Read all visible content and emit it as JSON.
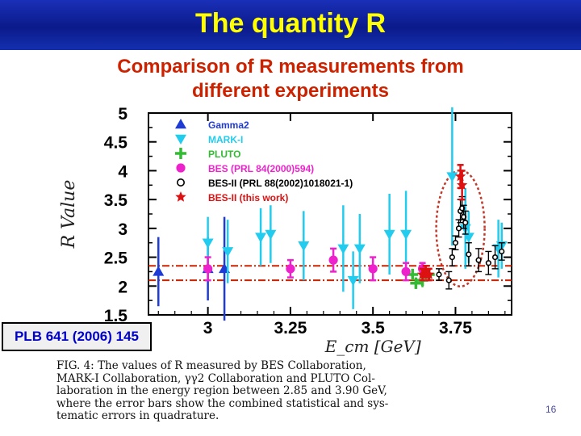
{
  "slide": {
    "title": "The quantity R",
    "subtitle_line1": "Comparison of R measurements from",
    "subtitle_line2": "different experiments",
    "reference_box": "PLB 641 (2006) 145",
    "page_number": "16",
    "caption_lines": [
      "FIG. 4: The values of R measured by BES Collaboration,",
      "MARK-I Collaboration, γγ2 Collaboration and PLUTO Col-",
      "laboration in the energy region between 2.85 and 3.90 GeV,",
      "where the error bars show the combined statistical and sys-",
      "tematic errors in quadrature."
    ]
  },
  "colors": {
    "title_text": "#ffff00",
    "subtitle_text": "#cc2200",
    "reference_text": "#0000cc",
    "band": "#cc2200"
  },
  "chart_data": {
    "type": "scatter",
    "title": "",
    "xlabel": "E_cm [GeV]",
    "ylabel": "R Value",
    "xlim": [
      2.82,
      3.92
    ],
    "ylim": [
      1.5,
      5.0
    ],
    "xticks": [
      3.0,
      3.25,
      3.5,
      3.75
    ],
    "xtick_labels": [
      "3",
      "3.25",
      "3.5",
      "3.75"
    ],
    "yticks": [
      1.5,
      2,
      2.5,
      3,
      3.5,
      4,
      4.5,
      5
    ],
    "ytick_labels": [
      "1.5",
      "2",
      "2.5",
      "3",
      "3.5",
      "4",
      "4.5",
      "5"
    ],
    "band": {
      "low": 2.1,
      "high": 2.35
    },
    "legend_position": "top-left",
    "series": [
      {
        "name": "Gamma2",
        "marker": "triangle-up",
        "color": "#1f3bd6",
        "points": [
          [
            2.85,
            2.25,
            0.6
          ],
          [
            3.0,
            2.3,
            0.55
          ],
          [
            3.05,
            2.3,
            0.9
          ]
        ]
      },
      {
        "name": "MARK-I",
        "marker": "triangle-down",
        "color": "#22ccee",
        "points": [
          [
            3.0,
            2.75,
            0.45
          ],
          [
            3.06,
            2.6,
            0.55
          ],
          [
            3.16,
            2.85,
            0.5
          ],
          [
            3.19,
            2.9,
            0.5
          ],
          [
            3.29,
            2.7,
            0.6
          ],
          [
            3.41,
            2.65,
            0.75
          ],
          [
            3.46,
            2.65,
            0.6
          ],
          [
            3.55,
            2.9,
            0.7
          ],
          [
            3.6,
            2.9,
            0.75
          ],
          [
            3.44,
            2.1,
            0.5
          ],
          [
            3.74,
            3.9,
            1.2
          ],
          [
            3.78,
            3.0,
            0.7
          ],
          [
            3.79,
            2.85,
            0.45
          ],
          [
            3.88,
            2.65,
            0.5
          ],
          [
            3.89,
            2.7,
            0.4
          ]
        ]
      },
      {
        "name": "PLUTO",
        "marker": "cross",
        "color": "#33bb33",
        "points": [
          [
            3.62,
            2.2,
            0.1
          ],
          [
            3.63,
            2.05,
            0.1
          ],
          [
            3.65,
            2.1,
            0.12
          ],
          [
            3.67,
            2.2,
            0.1
          ]
        ]
      },
      {
        "name": "BES (PRL 84(2000)594)",
        "marker": "circle-filled",
        "color": "#ee22cc",
        "points": [
          [
            3.0,
            2.3,
            0.2
          ],
          [
            3.25,
            2.3,
            0.15
          ],
          [
            3.38,
            2.45,
            0.2
          ],
          [
            3.5,
            2.3,
            0.2
          ],
          [
            3.6,
            2.25,
            0.15
          ],
          [
            3.65,
            2.3,
            0.1
          ]
        ]
      },
      {
        "name": "BES-II (PRL 88(2002)1018021-1)",
        "marker": "circle-open",
        "color": "#000000",
        "points": [
          [
            3.7,
            2.2,
            0.1
          ],
          [
            3.73,
            2.1,
            0.15
          ],
          [
            3.74,
            2.5,
            0.15
          ],
          [
            3.75,
            2.75,
            0.12
          ],
          [
            3.76,
            3.0,
            0.15
          ],
          [
            3.765,
            3.3,
            0.2
          ],
          [
            3.77,
            3.35,
            0.2
          ],
          [
            3.775,
            3.2,
            0.2
          ],
          [
            3.78,
            3.1,
            0.2
          ],
          [
            3.79,
            2.55,
            0.2
          ],
          [
            3.82,
            2.45,
            0.2
          ],
          [
            3.85,
            2.4,
            0.2
          ],
          [
            3.87,
            2.5,
            0.2
          ],
          [
            3.89,
            2.6,
            0.15
          ]
        ]
      },
      {
        "name": "BES-II (this work)",
        "marker": "star",
        "color": "#dd1111",
        "points": [
          [
            3.65,
            2.2,
            0.1
          ],
          [
            3.66,
            2.25,
            0.1
          ],
          [
            3.67,
            2.2,
            0.1
          ],
          [
            3.765,
            3.9,
            0.2
          ],
          [
            3.77,
            3.75,
            0.25
          ]
        ]
      }
    ]
  }
}
